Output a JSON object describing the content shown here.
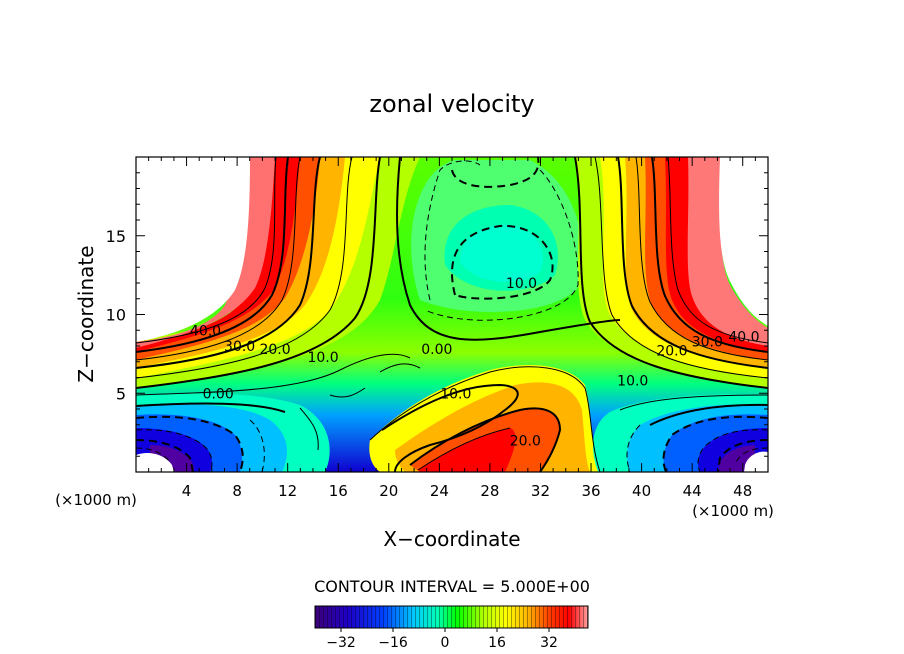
{
  "chart_data": {
    "type": "contour",
    "title": "zonal velocity",
    "xlabel": "X−coordinate",
    "ylabel": "Z−coordinate",
    "x_unit_left": "(×1000 m)",
    "x_unit_right": "(×1000 m)",
    "xlim": [
      0,
      50
    ],
    "ylim": [
      0,
      20
    ],
    "x_ticks": [
      4,
      8,
      12,
      16,
      20,
      24,
      28,
      32,
      36,
      40,
      44,
      48
    ],
    "y_ticks": [
      5,
      10,
      15
    ],
    "contour_interval_text": "CONTOUR INTERVAL = 5.000E+00",
    "contour_interval": 5.0,
    "colorbar": {
      "range": [
        -40,
        44
      ],
      "ticks": [
        -32,
        -16,
        0,
        16,
        32
      ],
      "colors": [
        "#3c0078",
        "#1e00c8",
        "#0040ff",
        "#00c8ff",
        "#00ffb4",
        "#00ff00",
        "#b4ff00",
        "#ffff00",
        "#ffb400",
        "#ff3c00",
        "#ff0000",
        "#ff8c8c"
      ]
    },
    "contour_labels": [
      {
        "text": "40.0",
        "x": 5.5,
        "y": 9.0
      },
      {
        "text": "30.0",
        "x": 8.2,
        "y": 8.0
      },
      {
        "text": "20.0",
        "x": 11.0,
        "y": 7.8
      },
      {
        "text": "10.0",
        "x": 14.8,
        "y": 7.3
      },
      {
        "text": "0.00",
        "x": 6.5,
        "y": 5.0
      },
      {
        "text": "0.00",
        "x": 23.8,
        "y": 7.8
      },
      {
        "text": "10.0",
        "x": 30.5,
        "y": 12.0
      },
      {
        "text": "10.0",
        "x": 25.3,
        "y": 5.0
      },
      {
        "text": "20.0",
        "x": 30.8,
        "y": 2.0
      },
      {
        "text": "10.0",
        "x": 39.3,
        "y": 5.8
      },
      {
        "text": "20.0",
        "x": 42.4,
        "y": 7.7
      },
      {
        "text": "30.0",
        "x": 45.2,
        "y": 8.3
      },
      {
        "text": "40.0",
        "x": 48.1,
        "y": 8.6
      }
    ]
  }
}
